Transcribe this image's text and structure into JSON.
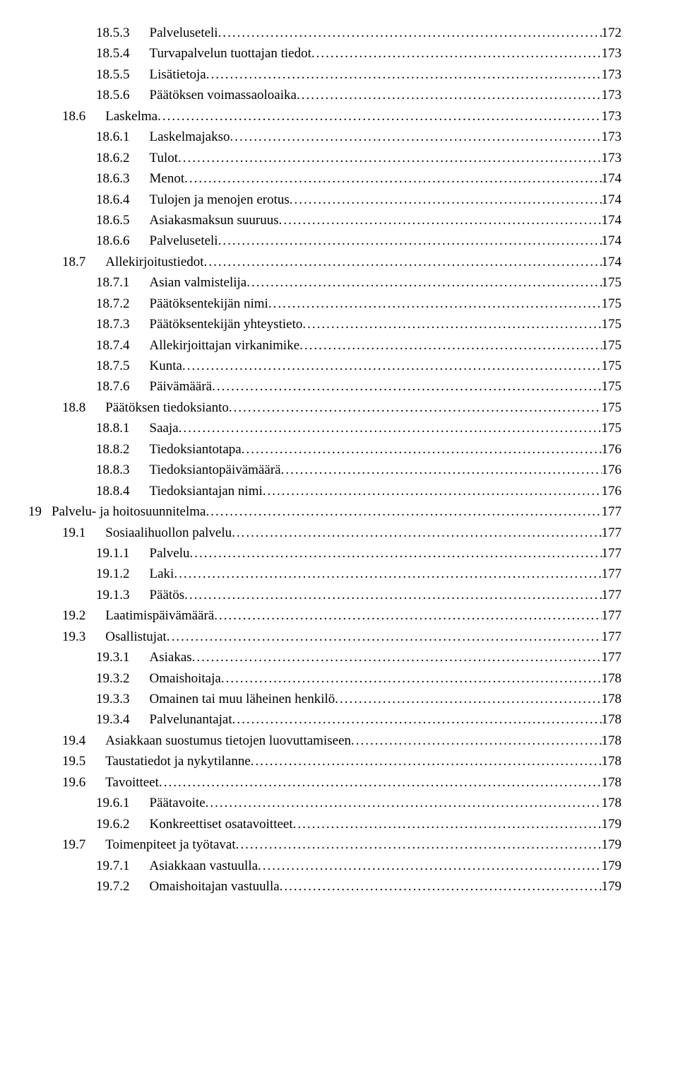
{
  "toc": [
    {
      "indent": 2,
      "num": "18.5.3",
      "title": "Palveluseteli",
      "page": "172"
    },
    {
      "indent": 2,
      "num": "18.5.4",
      "title": "Turvapalvelun tuottajan tiedot",
      "page": "173"
    },
    {
      "indent": 2,
      "num": "18.5.5",
      "title": "Lisätietoja",
      "page": "173"
    },
    {
      "indent": 2,
      "num": "18.5.6",
      "title": "Päätöksen voimassaoloaika",
      "page": "173"
    },
    {
      "indent": 1,
      "num": "18.6",
      "title": "Laskelma",
      "page": "173"
    },
    {
      "indent": 2,
      "num": "18.6.1",
      "title": "Laskelmajakso",
      "page": "173"
    },
    {
      "indent": 2,
      "num": "18.6.2",
      "title": "Tulot",
      "page": "173"
    },
    {
      "indent": 2,
      "num": "18.6.3",
      "title": "Menot",
      "page": "174"
    },
    {
      "indent": 2,
      "num": "18.6.4",
      "title": "Tulojen ja menojen erotus",
      "page": "174"
    },
    {
      "indent": 2,
      "num": "18.6.5",
      "title": "Asiakasmaksun suuruus",
      "page": "174"
    },
    {
      "indent": 2,
      "num": "18.6.6",
      "title": "Palveluseteli",
      "page": "174"
    },
    {
      "indent": 1,
      "num": "18.7",
      "title": "Allekirjoitustiedot",
      "page": "174"
    },
    {
      "indent": 2,
      "num": "18.7.1",
      "title": "Asian valmistelija",
      "page": "175"
    },
    {
      "indent": 2,
      "num": "18.7.2",
      "title": "Päätöksentekijän nimi",
      "page": "175"
    },
    {
      "indent": 2,
      "num": "18.7.3",
      "title": "Päätöksentekijän yhteystieto",
      "page": "175"
    },
    {
      "indent": 2,
      "num": "18.7.4",
      "title": "Allekirjoittajan virkanimike",
      "page": "175"
    },
    {
      "indent": 2,
      "num": "18.7.5",
      "title": "Kunta",
      "page": "175"
    },
    {
      "indent": 2,
      "num": "18.7.6",
      "title": "Päivämäärä",
      "page": "175"
    },
    {
      "indent": 1,
      "num": "18.8",
      "title": "Päätöksen tiedoksianto",
      "page": "175"
    },
    {
      "indent": 2,
      "num": "18.8.1",
      "title": "Saaja",
      "page": "175"
    },
    {
      "indent": 2,
      "num": "18.8.2",
      "title": "Tiedoksiantotapa",
      "page": "176"
    },
    {
      "indent": 2,
      "num": "18.8.3",
      "title": "Tiedoksiantopäivämäärä",
      "page": "176"
    },
    {
      "indent": 2,
      "num": "18.8.4",
      "title": "Tiedoksiantajan nimi",
      "page": "176"
    },
    {
      "indent": 0,
      "num": "19",
      "title": "Palvelu- ja hoitosuunnitelma",
      "page": "177"
    },
    {
      "indent": 1,
      "num": "19.1",
      "title": "Sosiaalihuollon palvelu",
      "page": "177"
    },
    {
      "indent": 2,
      "num": "19.1.1",
      "title": "Palvelu",
      "page": "177"
    },
    {
      "indent": 2,
      "num": "19.1.2",
      "title": "Laki",
      "page": "177"
    },
    {
      "indent": 2,
      "num": "19.1.3",
      "title": "Päätös",
      "page": "177"
    },
    {
      "indent": 1,
      "num": "19.2",
      "title": "Laatimispäivämäärä",
      "page": "177"
    },
    {
      "indent": 1,
      "num": "19.3",
      "title": "Osallistujat",
      "page": "177"
    },
    {
      "indent": 2,
      "num": "19.3.1",
      "title": "Asiakas",
      "page": "177"
    },
    {
      "indent": 2,
      "num": "19.3.2",
      "title": "Omaishoitaja",
      "page": "178"
    },
    {
      "indent": 2,
      "num": "19.3.3",
      "title": "Omainen tai muu läheinen henkilö",
      "page": "178"
    },
    {
      "indent": 2,
      "num": "19.3.4",
      "title": "Palvelunantajat",
      "page": "178"
    },
    {
      "indent": 1,
      "num": "19.4",
      "title": "Asiakkaan suostumus tietojen luovuttamiseen",
      "page": "178"
    },
    {
      "indent": 1,
      "num": "19.5",
      "title": "Taustatiedot ja nykytilanne",
      "page": "178"
    },
    {
      "indent": 1,
      "num": "19.6",
      "title": "Tavoitteet",
      "page": "178"
    },
    {
      "indent": 2,
      "num": "19.6.1",
      "title": "Päätavoite",
      "page": "178"
    },
    {
      "indent": 2,
      "num": "19.6.2",
      "title": "Konkreettiset osatavoitteet",
      "page": "179"
    },
    {
      "indent": 1,
      "num": "19.7",
      "title": "Toimenpiteet ja työtavat",
      "page": "179"
    },
    {
      "indent": 2,
      "num": "19.7.1",
      "title": "Asiakkaan vastuulla",
      "page": "179"
    },
    {
      "indent": 2,
      "num": "19.7.2",
      "title": "Omaishoitajan vastuulla",
      "page": "179"
    }
  ]
}
